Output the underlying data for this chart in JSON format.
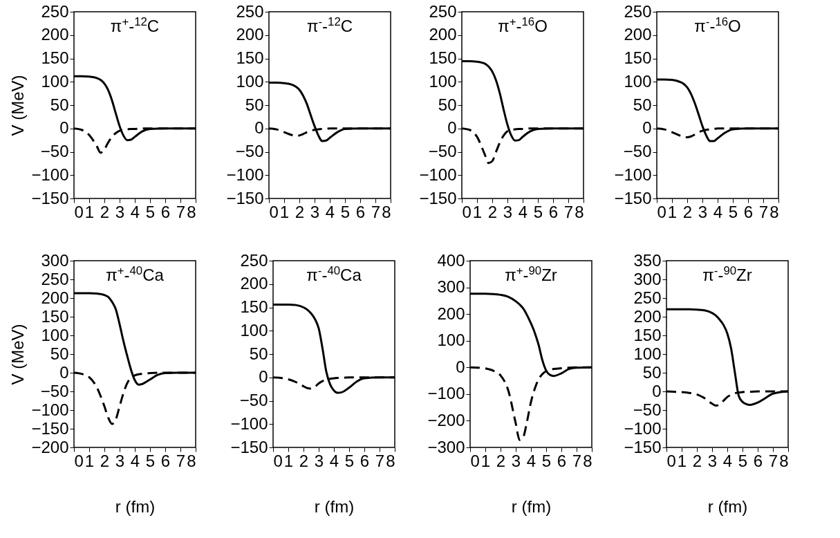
{
  "chart_data": [
    {
      "type": "line",
      "title": "π$^{+}$-$^{12}$C",
      "ylabel": "V (MeV)",
      "xlim": [
        0,
        8
      ],
      "xticks": [
        0,
        1,
        2,
        3,
        4,
        5,
        6,
        7,
        8
      ],
      "ylim": [
        -150,
        250
      ],
      "yticks": [
        -150,
        -100,
        -50,
        0,
        50,
        100,
        150,
        200,
        250
      ],
      "x": [
        0,
        0.5,
        1,
        1.5,
        1.75,
        2,
        2.25,
        2.5,
        2.75,
        3,
        3.25,
        3.5,
        3.75,
        4,
        4.5,
        5,
        6,
        7,
        8
      ],
      "series": [
        {
          "color": "#000000",
          "line_style": "solid",
          "values": [
            112,
            112,
            111,
            108,
            104,
            96,
            82,
            60,
            32,
            5,
            -15,
            -25,
            -24,
            -18,
            -6,
            -1,
            0,
            0,
            0
          ]
        },
        {
          "color": "#000000",
          "line_style": "dashed",
          "values": [
            0,
            -3,
            -14,
            -38,
            -52,
            -45,
            -30,
            -18,
            -10,
            -5,
            -3,
            -2,
            -1,
            -1,
            0,
            0,
            0,
            0,
            0
          ]
        }
      ]
    },
    {
      "type": "line",
      "title": "π$^{-}$-$^{12}$C",
      "xlim": [
        0,
        8
      ],
      "xticks": [
        0,
        1,
        2,
        3,
        4,
        5,
        6,
        7,
        8
      ],
      "ylim": [
        -150,
        250
      ],
      "yticks": [
        -150,
        -100,
        -50,
        0,
        50,
        100,
        150,
        200,
        250
      ],
      "x": [
        0,
        0.5,
        1,
        1.5,
        1.75,
        2,
        2.25,
        2.5,
        2.75,
        3,
        3.25,
        3.5,
        3.75,
        4,
        4.5,
        5,
        6,
        7,
        8
      ],
      "series": [
        {
          "color": "#000000",
          "line_style": "solid",
          "values": [
            98,
            98,
            97,
            94,
            90,
            83,
            70,
            52,
            28,
            5,
            -15,
            -27,
            -26,
            -20,
            -8,
            -1,
            0,
            0,
            0
          ]
        },
        {
          "color": "#000000",
          "line_style": "dashed",
          "values": [
            0,
            -2,
            -8,
            -14,
            -16,
            -15,
            -12,
            -8,
            -5,
            -3,
            -2,
            -1,
            -1,
            0,
            0,
            0,
            0,
            0,
            0
          ]
        }
      ]
    },
    {
      "type": "line",
      "title": "π$^{+}$-$^{16}$O",
      "xlim": [
        0,
        8
      ],
      "xticks": [
        0,
        1,
        2,
        3,
        4,
        5,
        6,
        7,
        8
      ],
      "ylim": [
        -150,
        250
      ],
      "yticks": [
        -150,
        -100,
        -50,
        0,
        50,
        100,
        150,
        200,
        250
      ],
      "x": [
        0,
        0.5,
        1,
        1.5,
        1.75,
        2,
        2.25,
        2.5,
        2.75,
        3,
        3.25,
        3.5,
        3.75,
        4,
        4.5,
        5,
        6,
        7,
        8
      ],
      "series": [
        {
          "color": "#000000",
          "line_style": "solid",
          "values": [
            144,
            144,
            143,
            139,
            133,
            122,
            103,
            75,
            40,
            8,
            -15,
            -26,
            -25,
            -18,
            -6,
            -1,
            0,
            0,
            0
          ]
        },
        {
          "color": "#000000",
          "line_style": "dashed",
          "values": [
            0,
            -3,
            -18,
            -55,
            -74,
            -70,
            -50,
            -30,
            -15,
            -6,
            -3,
            -2,
            -1,
            -1,
            0,
            0,
            0,
            0,
            0
          ]
        }
      ]
    },
    {
      "type": "line",
      "title": "π$^{-}$-$^{16}$O",
      "xlim": [
        0,
        8
      ],
      "xticks": [
        0,
        1,
        2,
        3,
        4,
        5,
        6,
        7,
        8
      ],
      "ylim": [
        -150,
        250
      ],
      "yticks": [
        -150,
        -100,
        -50,
        0,
        50,
        100,
        150,
        200,
        250
      ],
      "x": [
        0,
        0.5,
        1,
        1.5,
        1.75,
        2,
        2.25,
        2.5,
        2.75,
        3,
        3.25,
        3.5,
        3.75,
        4,
        4.5,
        5,
        6,
        7,
        8
      ],
      "series": [
        {
          "color": "#000000",
          "line_style": "solid",
          "values": [
            105,
            105,
            104,
            100,
            96,
            88,
            74,
            54,
            30,
            5,
            -15,
            -27,
            -27,
            -21,
            -9,
            -2,
            0,
            0,
            0
          ]
        },
        {
          "color": "#000000",
          "line_style": "dashed",
          "values": [
            0,
            -2,
            -8,
            -15,
            -18,
            -19,
            -17,
            -13,
            -8,
            -5,
            -3,
            -2,
            -1,
            0,
            0,
            0,
            0,
            0,
            0
          ]
        }
      ]
    },
    {
      "type": "line",
      "title": "π$^{+}$-$^{40}$Ca",
      "xlabel": "r (fm)",
      "ylabel": "V (MeV)",
      "xlim": [
        0,
        8
      ],
      "xticks": [
        0,
        1,
        2,
        3,
        4,
        5,
        6,
        7,
        8
      ],
      "ylim": [
        -200,
        300
      ],
      "yticks": [
        -200,
        -150,
        -100,
        -50,
        0,
        50,
        100,
        150,
        200,
        250,
        300
      ],
      "x": [
        0,
        0.5,
        1,
        1.5,
        2,
        2.25,
        2.5,
        2.75,
        3,
        3.25,
        3.5,
        3.75,
        4,
        4.25,
        4.5,
        5,
        5.5,
        6,
        7,
        8
      ],
      "series": [
        {
          "color": "#000000",
          "line_style": "solid",
          "values": [
            213,
            213,
            213,
            212,
            208,
            203,
            190,
            170,
            130,
            85,
            45,
            8,
            -20,
            -32,
            -30,
            -18,
            -6,
            -1,
            0,
            0
          ]
        },
        {
          "color": "#000000",
          "line_style": "dashed",
          "values": [
            0,
            -3,
            -12,
            -39,
            -90,
            -120,
            -137,
            -125,
            -90,
            -55,
            -28,
            -14,
            -7,
            -4,
            -3,
            -1,
            0,
            0,
            0,
            0
          ]
        }
      ]
    },
    {
      "type": "line",
      "title": "π$^{-}$-$^{40}$Ca",
      "xlabel": "r (fm)",
      "xlim": [
        0,
        8
      ],
      "xticks": [
        0,
        1,
        2,
        3,
        4,
        5,
        6,
        7,
        8
      ],
      "ylim": [
        -150,
        250
      ],
      "yticks": [
        -150,
        -100,
        -50,
        0,
        50,
        100,
        150,
        200,
        250
      ],
      "x": [
        0,
        0.5,
        1,
        1.5,
        2,
        2.25,
        2.5,
        2.75,
        3,
        3.25,
        3.5,
        3.75,
        4,
        4.25,
        4.5,
        5,
        5.5,
        6,
        7,
        8
      ],
      "series": [
        {
          "color": "#000000",
          "line_style": "solid",
          "values": [
            156,
            156,
            156,
            155,
            150,
            145,
            137,
            125,
            105,
            62,
            12,
            -15,
            -28,
            -33,
            -32,
            -22,
            -9,
            -2,
            0,
            0
          ]
        },
        {
          "color": "#000000",
          "line_style": "dashed",
          "values": [
            0,
            -1,
            -4,
            -10,
            -19,
            -23,
            -24,
            -20,
            -13,
            -8,
            -5,
            -3,
            -2,
            -1,
            -1,
            0,
            0,
            0,
            0,
            0
          ]
        }
      ]
    },
    {
      "type": "line",
      "title": "π$^{+}$-$^{90}$Zr",
      "xlabel": "r (fm)",
      "xlim": [
        0,
        8
      ],
      "xticks": [
        0,
        1,
        2,
        3,
        4,
        5,
        6,
        7,
        8
      ],
      "ylim": [
        -300,
        400
      ],
      "yticks": [
        -300,
        -200,
        -100,
        0,
        100,
        200,
        300,
        400
      ],
      "x": [
        0,
        0.5,
        1,
        1.5,
        2,
        2.5,
        3,
        3.25,
        3.5,
        3.75,
        4,
        4.25,
        4.5,
        4.75,
        5,
        5.25,
        5.5,
        6,
        6.5,
        7,
        8
      ],
      "series": [
        {
          "color": "#000000",
          "line_style": "solid",
          "values": [
            276,
            276,
            276,
            275,
            272,
            265,
            248,
            236,
            220,
            195,
            165,
            130,
            85,
            27,
            -12,
            -28,
            -32,
            -22,
            -6,
            -1,
            0
          ]
        },
        {
          "color": "#000000",
          "line_style": "dashed",
          "values": [
            0,
            -1,
            -4,
            -12,
            -30,
            -85,
            -210,
            -272,
            -260,
            -200,
            -130,
            -80,
            -45,
            -25,
            -14,
            -9,
            -6,
            -3,
            -1,
            0,
            0
          ]
        }
      ]
    },
    {
      "type": "line",
      "title": "π$^{-}$-$^{90}$Zr",
      "xlabel": "r (fm)",
      "xlim": [
        0,
        8
      ],
      "xticks": [
        0,
        1,
        2,
        3,
        4,
        5,
        6,
        7,
        8
      ],
      "ylim": [
        -150,
        350
      ],
      "yticks": [
        -150,
        -100,
        -50,
        0,
        50,
        100,
        150,
        200,
        250,
        300,
        350
      ],
      "x": [
        0,
        0.5,
        1,
        1.5,
        2,
        2.5,
        3,
        3.25,
        3.5,
        3.75,
        4,
        4.25,
        4.5,
        4.75,
        5,
        5.25,
        5.5,
        6,
        6.5,
        7,
        8
      ],
      "series": [
        {
          "color": "#000000",
          "line_style": "solid",
          "values": [
            220,
            220,
            220,
            220,
            219,
            217,
            210,
            203,
            192,
            178,
            155,
            115,
            50,
            -12,
            -28,
            -34,
            -36,
            -30,
            -18,
            -6,
            0
          ]
        },
        {
          "color": "#000000",
          "line_style": "dashed",
          "values": [
            0,
            -1,
            -2,
            -4,
            -8,
            -18,
            -33,
            -38,
            -35,
            -25,
            -15,
            -9,
            -5,
            -3,
            -2,
            -1,
            -1,
            0,
            0,
            0,
            0
          ]
        }
      ]
    }
  ]
}
